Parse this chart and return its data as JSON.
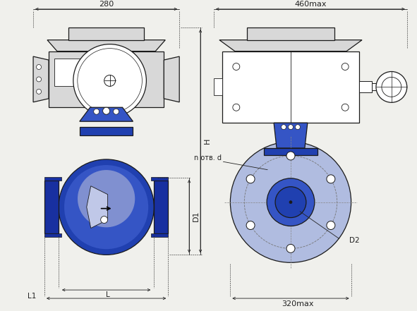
{
  "bg_color": "#f0f0ec",
  "line_color": "#1a1a1a",
  "blue_body": "#2040b0",
  "blue_mid": "#3555c5",
  "blue_light": "#8090d0",
  "blue_flange": "#1830a0",
  "blue_pale": "#b0bce0",
  "gray_body": "#d8d8d8",
  "gray_dark": "#a0a0a0",
  "white": "#ffffff",
  "dim_color": "#222222",
  "label_280": "280",
  "label_460": "460max",
  "label_320": "320max",
  "label_H": "H",
  "label_D1": "D1",
  "label_D2": "D2",
  "label_L": "L",
  "label_L1": "L1",
  "label_n_otv_d": "n отв. d"
}
